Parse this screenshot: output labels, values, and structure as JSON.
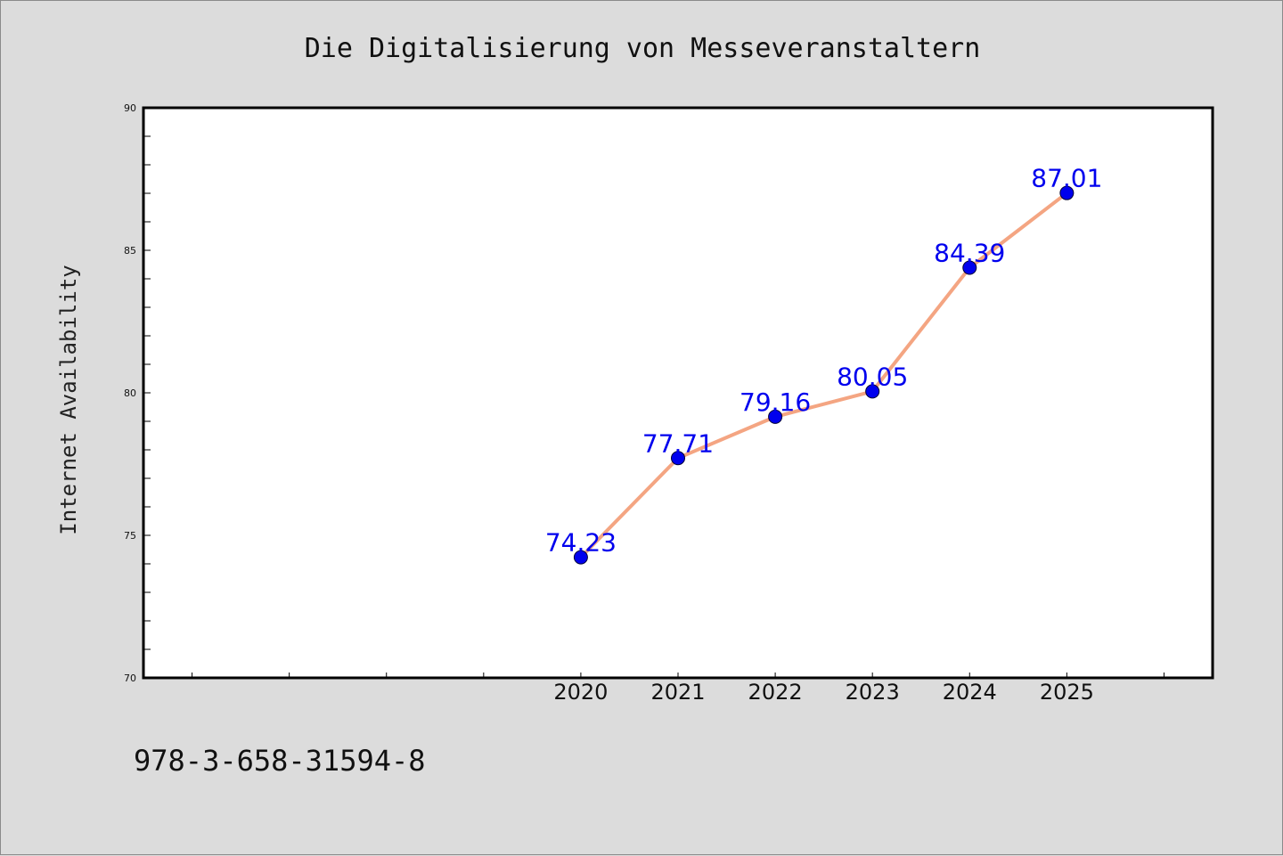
{
  "chart_data": {
    "type": "line",
    "title": "Die Digitalisierung von Messeveranstaltern",
    "ylabel": "Internet Availability",
    "xlabel": "",
    "x": [
      2020,
      2021,
      2022,
      2023,
      2024,
      2025
    ],
    "x_tick_labels": [
      "2020",
      "2021",
      "2022",
      "2023",
      "2024",
      "2025"
    ],
    "xlim": [
      2015.5,
      2026.5
    ],
    "ylim": [
      70,
      90
    ],
    "y_tick_labels": [
      "70",
      "75",
      "80",
      "85",
      "90"
    ],
    "y_ticks": [
      70,
      75,
      80,
      85,
      90
    ],
    "series": [
      {
        "values": [
          74.23,
          77.71,
          79.16,
          80.05,
          84.39,
          87.01
        ],
        "data_labels": [
          "74.23",
          "77.71",
          "79.16",
          "80.05",
          "84.39",
          "87.01"
        ],
        "line_color": "#f4a582",
        "marker_color": "#0000ee"
      }
    ],
    "grid": false,
    "legend": "none"
  },
  "footer": {
    "isbn": "978-3-658-31594-8"
  },
  "colors": {
    "background": "#dcdcdc",
    "plot_background": "#ffffff",
    "data_label": "#0000ee"
  }
}
